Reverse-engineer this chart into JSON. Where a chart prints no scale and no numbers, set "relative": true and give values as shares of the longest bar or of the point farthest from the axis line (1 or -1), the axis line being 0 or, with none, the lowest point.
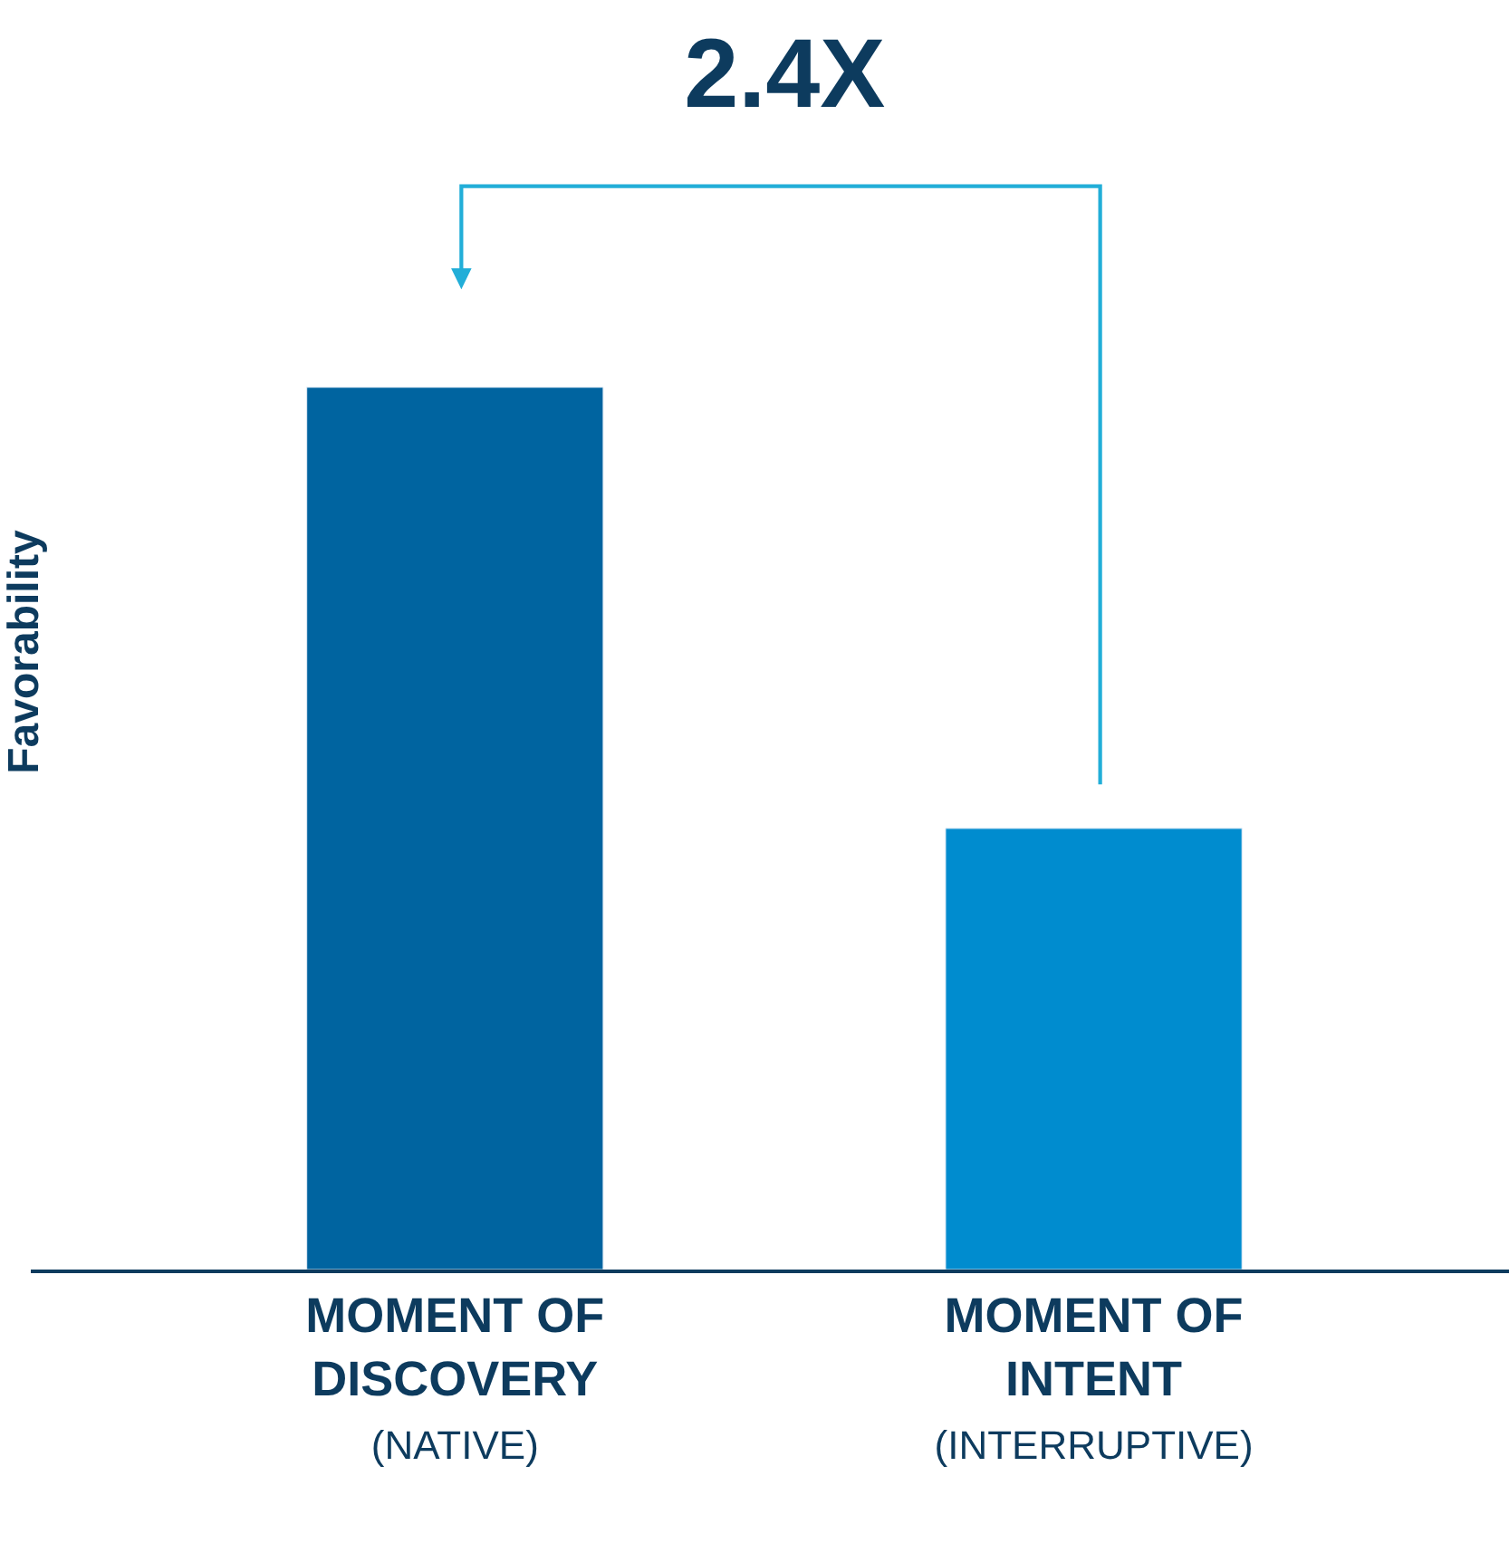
{
  "chart_data": {
    "type": "bar",
    "title": "2.4X",
    "ylabel": "Favorability",
    "relative": true,
    "categories": [
      "MOMENT OF\nDISCOVERY\n(NATIVE)",
      "MOMENT OF\nINTENT\n(INTERRUPTIVE)"
    ],
    "values": [
      1,
      0.5
    ],
    "colors": [
      "#0064a0",
      "#008ccf"
    ],
    "legend": false
  }
}
